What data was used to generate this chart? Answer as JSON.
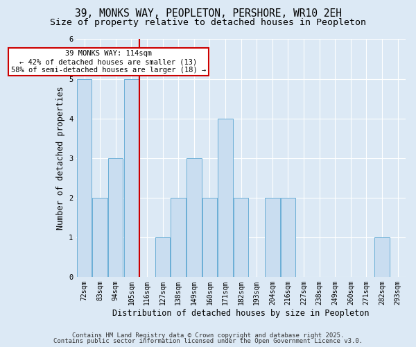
{
  "title1": "39, MONKS WAY, PEOPLETON, PERSHORE, WR10 2EH",
  "title2": "Size of property relative to detached houses in Peopleton",
  "xlabel": "Distribution of detached houses by size in Peopleton",
  "ylabel": "Number of detached properties",
  "bar_labels": [
    "72sqm",
    "83sqm",
    "94sqm",
    "105sqm",
    "116sqm",
    "127sqm",
    "138sqm",
    "149sqm",
    "160sqm",
    "171sqm",
    "182sqm",
    "193sqm",
    "204sqm",
    "216sqm",
    "227sqm",
    "238sqm",
    "249sqm",
    "260sqm",
    "271sqm",
    "282sqm",
    "293sqm"
  ],
  "bar_values": [
    5,
    2,
    3,
    5,
    0,
    1,
    2,
    3,
    2,
    4,
    2,
    0,
    2,
    2,
    0,
    0,
    0,
    0,
    0,
    1,
    0
  ],
  "bar_color": "#c9ddf0",
  "bar_edge_color": "#6aaed6",
  "vline_index": 3.5,
  "annotation_text": "39 MONKS WAY: 114sqm\n← 42% of detached houses are smaller (13)\n58% of semi-detached houses are larger (18) →",
  "annotation_box_facecolor": "#ffffff",
  "annotation_box_edgecolor": "#cc0000",
  "vline_color": "#cc0000",
  "ylim": [
    0,
    6
  ],
  "yticks": [
    0,
    1,
    2,
    3,
    4,
    5,
    6
  ],
  "footer1": "Contains HM Land Registry data © Crown copyright and database right 2025.",
  "footer2": "Contains public sector information licensed under the Open Government Licence v3.0.",
  "bg_color": "#dce9f5",
  "plot_bg_color": "#dce9f5",
  "title_fontsize": 10.5,
  "subtitle_fontsize": 9.5,
  "axis_label_fontsize": 8.5,
  "tick_fontsize": 7,
  "annot_fontsize": 7.5,
  "footer_fontsize": 6.5
}
